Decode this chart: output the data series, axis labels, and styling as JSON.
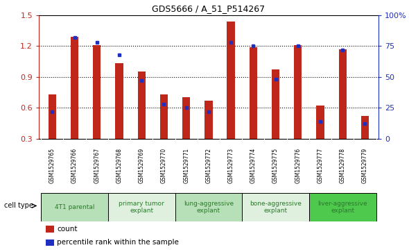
{
  "title": "GDS5666 / A_51_P514267",
  "samples": [
    "GSM1529765",
    "GSM1529766",
    "GSM1529767",
    "GSM1529768",
    "GSM1529769",
    "GSM1529770",
    "GSM1529771",
    "GSM1529772",
    "GSM1529773",
    "GSM1529774",
    "GSM1529775",
    "GSM1529776",
    "GSM1529777",
    "GSM1529778",
    "GSM1529779"
  ],
  "counts": [
    0.73,
    1.29,
    1.21,
    1.03,
    0.95,
    0.73,
    0.7,
    0.67,
    1.44,
    1.19,
    0.97,
    1.21,
    0.62,
    1.17,
    0.52
  ],
  "percentiles": [
    22,
    82,
    78,
    68,
    47,
    28,
    25,
    22,
    78,
    75,
    48,
    75,
    14,
    72,
    12
  ],
  "ylim_left": [
    0.3,
    1.5
  ],
  "ylim_right": [
    0,
    100
  ],
  "yticks_left": [
    0.3,
    0.6,
    0.9,
    1.2,
    1.5
  ],
  "yticks_right": [
    0,
    25,
    50,
    75,
    100
  ],
  "ytick_labels_right": [
    "0",
    "25",
    "50",
    "75",
    "100%"
  ],
  "bar_color": "#C0271B",
  "dot_color": "#1F2FBF",
  "cell_types": [
    {
      "label": "4T1 parental",
      "start": 0,
      "end": 3,
      "color": "#b8e0b8"
    },
    {
      "label": "primary tumor\nexplant",
      "start": 3,
      "end": 6,
      "color": "#dff0df"
    },
    {
      "label": "lung-aggressive\nexplant",
      "start": 6,
      "end": 9,
      "color": "#b8e0b8"
    },
    {
      "label": "bone-aggressive\nexplant",
      "start": 9,
      "end": 12,
      "color": "#dff0df"
    },
    {
      "label": "liver-aggressive\nexplant",
      "start": 12,
      "end": 15,
      "color": "#4ec94e"
    }
  ],
  "legend_count_label": "count",
  "legend_pct_label": "percentile rank within the sample",
  "cell_type_label": "cell type",
  "bar_width": 0.35,
  "sample_bg_color": "#d0d0d0",
  "plot_bg_color": "#ffffff",
  "cell_type_text_color": "#2a7a2a",
  "grid_linestyle": "dotted",
  "grid_linewidth": 0.8
}
